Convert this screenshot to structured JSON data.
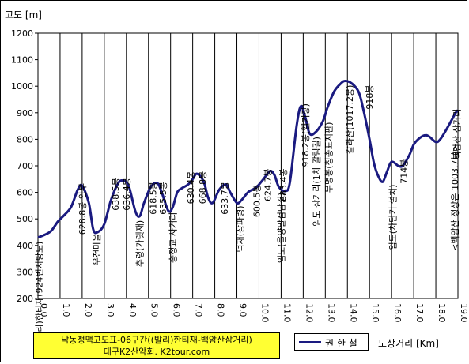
{
  "chart_data": {
    "type": "line",
    "ylabel": "고도 [m]",
    "xlabel": "도상거리 [Km]",
    "xlim": [
      0,
      19
    ],
    "ylim": [
      200,
      1200
    ],
    "xticks": [
      0,
      1,
      2,
      3,
      4,
      5,
      6,
      7,
      8,
      9,
      10,
      11,
      12,
      13,
      14,
      15,
      16,
      17,
      18,
      19
    ],
    "xtick_labels": [
      "0.0",
      "1.0",
      "2.0",
      "3.0",
      "4.0",
      "5.0",
      "6.0",
      "7.0",
      "8.0",
      "9.0",
      "10.0",
      "11.0",
      "12.0",
      "13.0",
      "14.0",
      "15.0",
      "16.0",
      "17.0",
      "18.0",
      "19.0"
    ],
    "yticks": [
      200,
      300,
      400,
      500,
      600,
      700,
      800,
      900,
      1000,
      1100,
      1200
    ],
    "grid": "vertical",
    "series": [
      {
        "name": "권 한 철",
        "color": "#1a1a80",
        "x": [
          0.0,
          0.3,
          0.6,
          0.9,
          1.2,
          1.5,
          1.8,
          2.0,
          2.3,
          2.5,
          2.7,
          3.0,
          3.3,
          3.6,
          3.8,
          4.1,
          4.4,
          4.6,
          4.8,
          5.1,
          5.4,
          5.6,
          5.9,
          6.1,
          6.3,
          6.5,
          6.8,
          7.0,
          7.2,
          7.5,
          7.7,
          7.9,
          8.2,
          8.5,
          8.7,
          9.0,
          9.2,
          9.5,
          9.7,
          9.9,
          10.2,
          10.5,
          10.7,
          10.9,
          11.2,
          11.4,
          11.7,
          11.9,
          12.1,
          12.3,
          12.6,
          12.9,
          13.1,
          13.4,
          13.7,
          13.9,
          14.2,
          14.5,
          14.7,
          15.0,
          15.2,
          15.4,
          15.6,
          15.8,
          16.0,
          16.3,
          16.5,
          16.8,
          17.0,
          17.2,
          17.5,
          17.7,
          18.0,
          18.2,
          18.5,
          18.7,
          18.9,
          19.0
        ],
        "y": [
          430,
          440,
          455,
          490,
          515,
          545,
          610,
          625,
          560,
          460,
          450,
          480,
          570,
          630,
          645,
          625,
          530,
          510,
          560,
          620,
          635,
          600,
          530,
          545,
          600,
          615,
          630,
          650,
          670,
          640,
          580,
          560,
          610,
          630,
          600,
          560,
          570,
          600,
          610,
          620,
          650,
          680,
          665,
          620,
          605,
          640,
          850,
          925,
          880,
          820,
          830,
          870,
          920,
          980,
          1010,
          1020,
          1010,
          980,
          920,
          800,
          710,
          660,
          640,
          680,
          715,
          700,
          700,
          740,
          780,
          800,
          815,
          810,
          790,
          800,
          840,
          870,
          900,
          910
        ]
      }
    ],
    "annotations": [
      {
        "text": "(발리)한티재(924번지방도)",
        "x": 0.05,
        "y": 415,
        "orient": "vertical"
      },
      {
        "text": "628.8봉 안부",
        "x": 2.0,
        "y": 635,
        "orient": "vertical"
      },
      {
        "text": "우천마을",
        "x": 2.65,
        "y": 445,
        "orient": "vertical"
      },
      {
        "text": "638.5봉",
        "x": 3.5,
        "y": 655,
        "orient": "vertical"
      },
      {
        "text": "636.4봉",
        "x": 4.0,
        "y": 655,
        "orient": "vertical"
      },
      {
        "text": "추령(가랫재)",
        "x": 4.6,
        "y": 495,
        "orient": "vertical"
      },
      {
        "text": "618.5봉",
        "x": 5.2,
        "y": 640,
        "orient": "vertical"
      },
      {
        "text": "635.5봉",
        "x": 5.65,
        "y": 640,
        "orient": "vertical"
      },
      {
        "text": "송정교 사거리",
        "x": 6.1,
        "y": 525,
        "orient": "vertical"
      },
      {
        "text": "630.4봉",
        "x": 6.9,
        "y": 680,
        "orient": "vertical"
      },
      {
        "text": "668.8봉",
        "x": 7.45,
        "y": 680,
        "orient": "vertical"
      },
      {
        "text": "633.7봉",
        "x": 8.45,
        "y": 640,
        "orient": "vertical"
      },
      {
        "text": "덕재(장파령)",
        "x": 9.15,
        "y": 550,
        "orient": "vertical"
      },
      {
        "text": "600.5봉",
        "x": 9.9,
        "y": 630,
        "orient": "vertical"
      },
      {
        "text": "624.7봉",
        "x": 10.4,
        "y": 690,
        "orient": "vertical"
      },
      {
        "text": "683.4봉",
        "x": 11.1,
        "y": 690,
        "orient": "vertical"
      },
      {
        "text": "임도(율양말점담길)",
        "x": 11.0,
        "y": 600,
        "orient": "vertical"
      },
      {
        "text": "918.2봉(헬기장)",
        "x": 12.1,
        "y": 935,
        "orient": "vertical"
      },
      {
        "text": "임도 삼거리(1차 갈림길)",
        "x": 12.6,
        "y": 810,
        "orient": "vertical"
      },
      {
        "text": "무명봉(청송표지판)",
        "x": 13.15,
        "y": 865,
        "orient": "vertical"
      },
      {
        "text": "갈라산(1017.2봉)",
        "x": 14.1,
        "y": 1005,
        "orient": "vertical"
      },
      {
        "text": "918봉",
        "x": 15.0,
        "y": 1005,
        "orient": "vertical"
      },
      {
        "text": "임도(차단기 설치)",
        "x": 16.05,
        "y": 630,
        "orient": "vertical"
      },
      {
        "text": "714봉",
        "x": 16.55,
        "y": 725,
        "orient": "vertical"
      },
      {
        "text": "<백암산 정상은 1003.7봉>",
        "x": 18.85,
        "y": 780,
        "orient": "vertical"
      },
      {
        "text": "백암산 삼거리",
        "x": 18.95,
        "y": 915,
        "orient": "vertical"
      }
    ]
  },
  "title_box": {
    "line1": "낙동정맥고도표-06구간((발리)한티재-백암산삼거리)",
    "line2": "대구K2산악회. K2tour.com"
  },
  "legend": {
    "label": "권 한 철"
  }
}
